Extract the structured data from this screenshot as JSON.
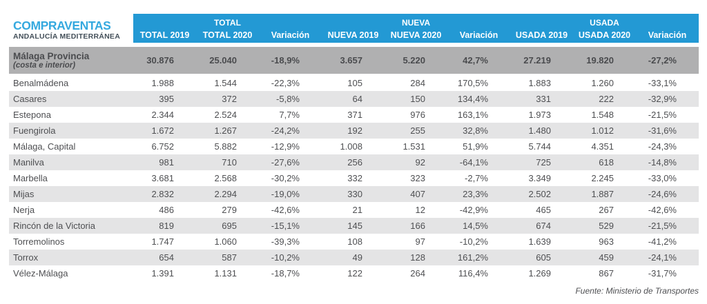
{
  "logo": {
    "title": "COMPRAVENTAS",
    "subtitle": "ANDALUCÍA MEDITERRÁNEA"
  },
  "chart_data": {
    "type": "table",
    "title": "COMPRAVENTAS ANDALUCÍA MEDITERRÁNEA",
    "column_groups": [
      "TOTAL",
      "NUEVA",
      "USADA"
    ],
    "columns": [
      "TOTAL 2019",
      "TOTAL 2020",
      "Variación",
      "NUEVA 2019",
      "NUEVA 2020",
      "Variación",
      "USADA 2019",
      "USADA 2020",
      "Variación"
    ],
    "summary_row": {
      "name": "Málaga Provincia",
      "note": "(costa e interior)",
      "values": [
        "30.876",
        "25.040",
        "-18,9%",
        "3.657",
        "5.220",
        "42,7%",
        "27.219",
        "19.820",
        "-27,2%"
      ]
    },
    "rows": [
      {
        "name": "Benalmádena",
        "values": [
          "1.988",
          "1.544",
          "-22,3%",
          "105",
          "284",
          "170,5%",
          "1.883",
          "1.260",
          "-33,1%"
        ]
      },
      {
        "name": "Casares",
        "values": [
          "395",
          "372",
          "-5,8%",
          "64",
          "150",
          "134,4%",
          "331",
          "222",
          "-32,9%"
        ]
      },
      {
        "name": "Estepona",
        "values": [
          "2.344",
          "2.524",
          "7,7%",
          "371",
          "976",
          "163,1%",
          "1.973",
          "1.548",
          "-21,5%"
        ]
      },
      {
        "name": "Fuengirola",
        "values": [
          "1.672",
          "1.267",
          "-24,2%",
          "192",
          "255",
          "32,8%",
          "1.480",
          "1.012",
          "-31,6%"
        ]
      },
      {
        "name": "Málaga, Capital",
        "values": [
          "6.752",
          "5.882",
          "-12,9%",
          "1.008",
          "1.531",
          "51,9%",
          "5.744",
          "4.351",
          "-24,3%"
        ]
      },
      {
        "name": "Manilva",
        "values": [
          "981",
          "710",
          "-27,6%",
          "256",
          "92",
          "-64,1%",
          "725",
          "618",
          "-14,8%"
        ]
      },
      {
        "name": "Marbella",
        "values": [
          "3.681",
          "2.568",
          "-30,2%",
          "332",
          "323",
          "-2,7%",
          "3.349",
          "2.245",
          "-33,0%"
        ]
      },
      {
        "name": "Mijas",
        "values": [
          "2.832",
          "2.294",
          "-19,0%",
          "330",
          "407",
          "23,3%",
          "2.502",
          "1.887",
          "-24,6%"
        ]
      },
      {
        "name": "Nerja",
        "values": [
          "486",
          "279",
          "-42,6%",
          "21",
          "12",
          "-42,9%",
          "465",
          "267",
          "-42,6%"
        ]
      },
      {
        "name": "Rincón de la Victoria",
        "values": [
          "819",
          "695",
          "-15,1%",
          "145",
          "166",
          "14,5%",
          "674",
          "529",
          "-21,5%"
        ]
      },
      {
        "name": "Torremolinos",
        "values": [
          "1.747",
          "1.060",
          "-39,3%",
          "108",
          "97",
          "-10,2%",
          "1.639",
          "963",
          "-41,2%"
        ]
      },
      {
        "name": "Torrox",
        "values": [
          "654",
          "587",
          "-10,2%",
          "49",
          "128",
          "161,2%",
          "605",
          "459",
          "-24,1%"
        ]
      },
      {
        "name": "Vélez-Málaga",
        "values": [
          "1.391",
          "1.131",
          "-18,7%",
          "122",
          "264",
          "116,4%",
          "1.269",
          "867",
          "-31,7%"
        ]
      }
    ],
    "source": "Fuente: Ministerio de Transportes"
  },
  "colors": {
    "header_blue": "#2399d4",
    "logo_blue": "#35a9df",
    "logo_subtitle_gray": "#44505a",
    "summary_band_gray": "#b0b0b1",
    "row_alt_gray": "#e4e4e5",
    "text_gray": "#4e4f52",
    "header_text": "#ffffff"
  }
}
